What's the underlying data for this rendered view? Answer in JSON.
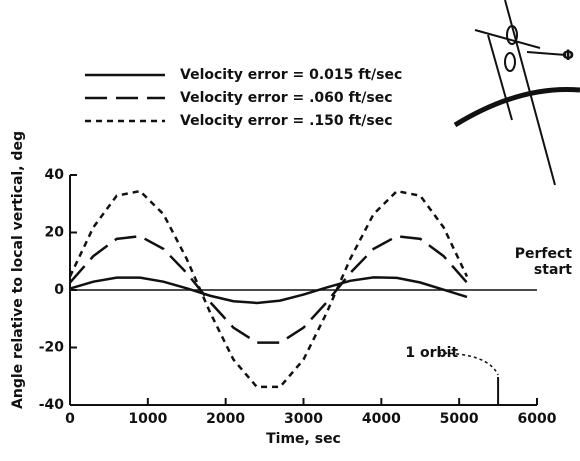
{
  "chart_data": {
    "type": "line",
    "x": [
      0,
      300,
      600,
      900,
      1200,
      1500,
      1800,
      2100,
      2400,
      2700,
      3000,
      3300,
      3600,
      3900,
      4200,
      4500,
      4800,
      5100
    ],
    "series": [
      {
        "name": "Velocity error = 0.015 ft/sec",
        "color": "#111111",
        "dash": "solid",
        "values": [
          0.5,
          2.9,
          4.3,
          4.3,
          2.9,
          0.6,
          -2.0,
          -3.9,
          -4.5,
          -3.7,
          -1.6,
          0.9,
          3.2,
          4.4,
          4.2,
          2.6,
          0.1,
          -2.4
        ]
      },
      {
        "name": "Velocity error = .060 ft/sec",
        "color": "#111111",
        "dash": "long",
        "values": [
          2.6,
          11.8,
          17.8,
          18.7,
          14.3,
          5.9,
          -4.2,
          -13.1,
          -18.3,
          -18.3,
          -13.1,
          -4.2,
          5.9,
          14.3,
          18.7,
          17.8,
          11.8,
          2.6
        ]
      },
      {
        "name": "Velocity error = .150 ft/sec",
        "color": "#111111",
        "dash": "short",
        "values": [
          4.7,
          21.8,
          32.8,
          34.4,
          26.4,
          10.8,
          -7.8,
          -24.2,
          -33.7,
          -33.7,
          -24.2,
          -7.8,
          10.8,
          26.4,
          34.4,
          32.8,
          21.8,
          4.7
        ]
      }
    ],
    "x_label": "Time, sec",
    "y_label": "Angle relative to local vertical, deg",
    "xlim": [
      0,
      6000
    ],
    "xticks": [
      0,
      1000,
      2000,
      3000,
      4000,
      5000,
      6000
    ],
    "ylim": [
      -40,
      40
    ],
    "yticks": [
      -40,
      -20,
      0,
      20,
      40
    ],
    "reference_line": {
      "y": 0,
      "label": [
        "Perfect",
        "start"
      ]
    },
    "marker": {
      "x": 5500,
      "label": "1 orbit"
    },
    "inset_label": "Φ"
  }
}
